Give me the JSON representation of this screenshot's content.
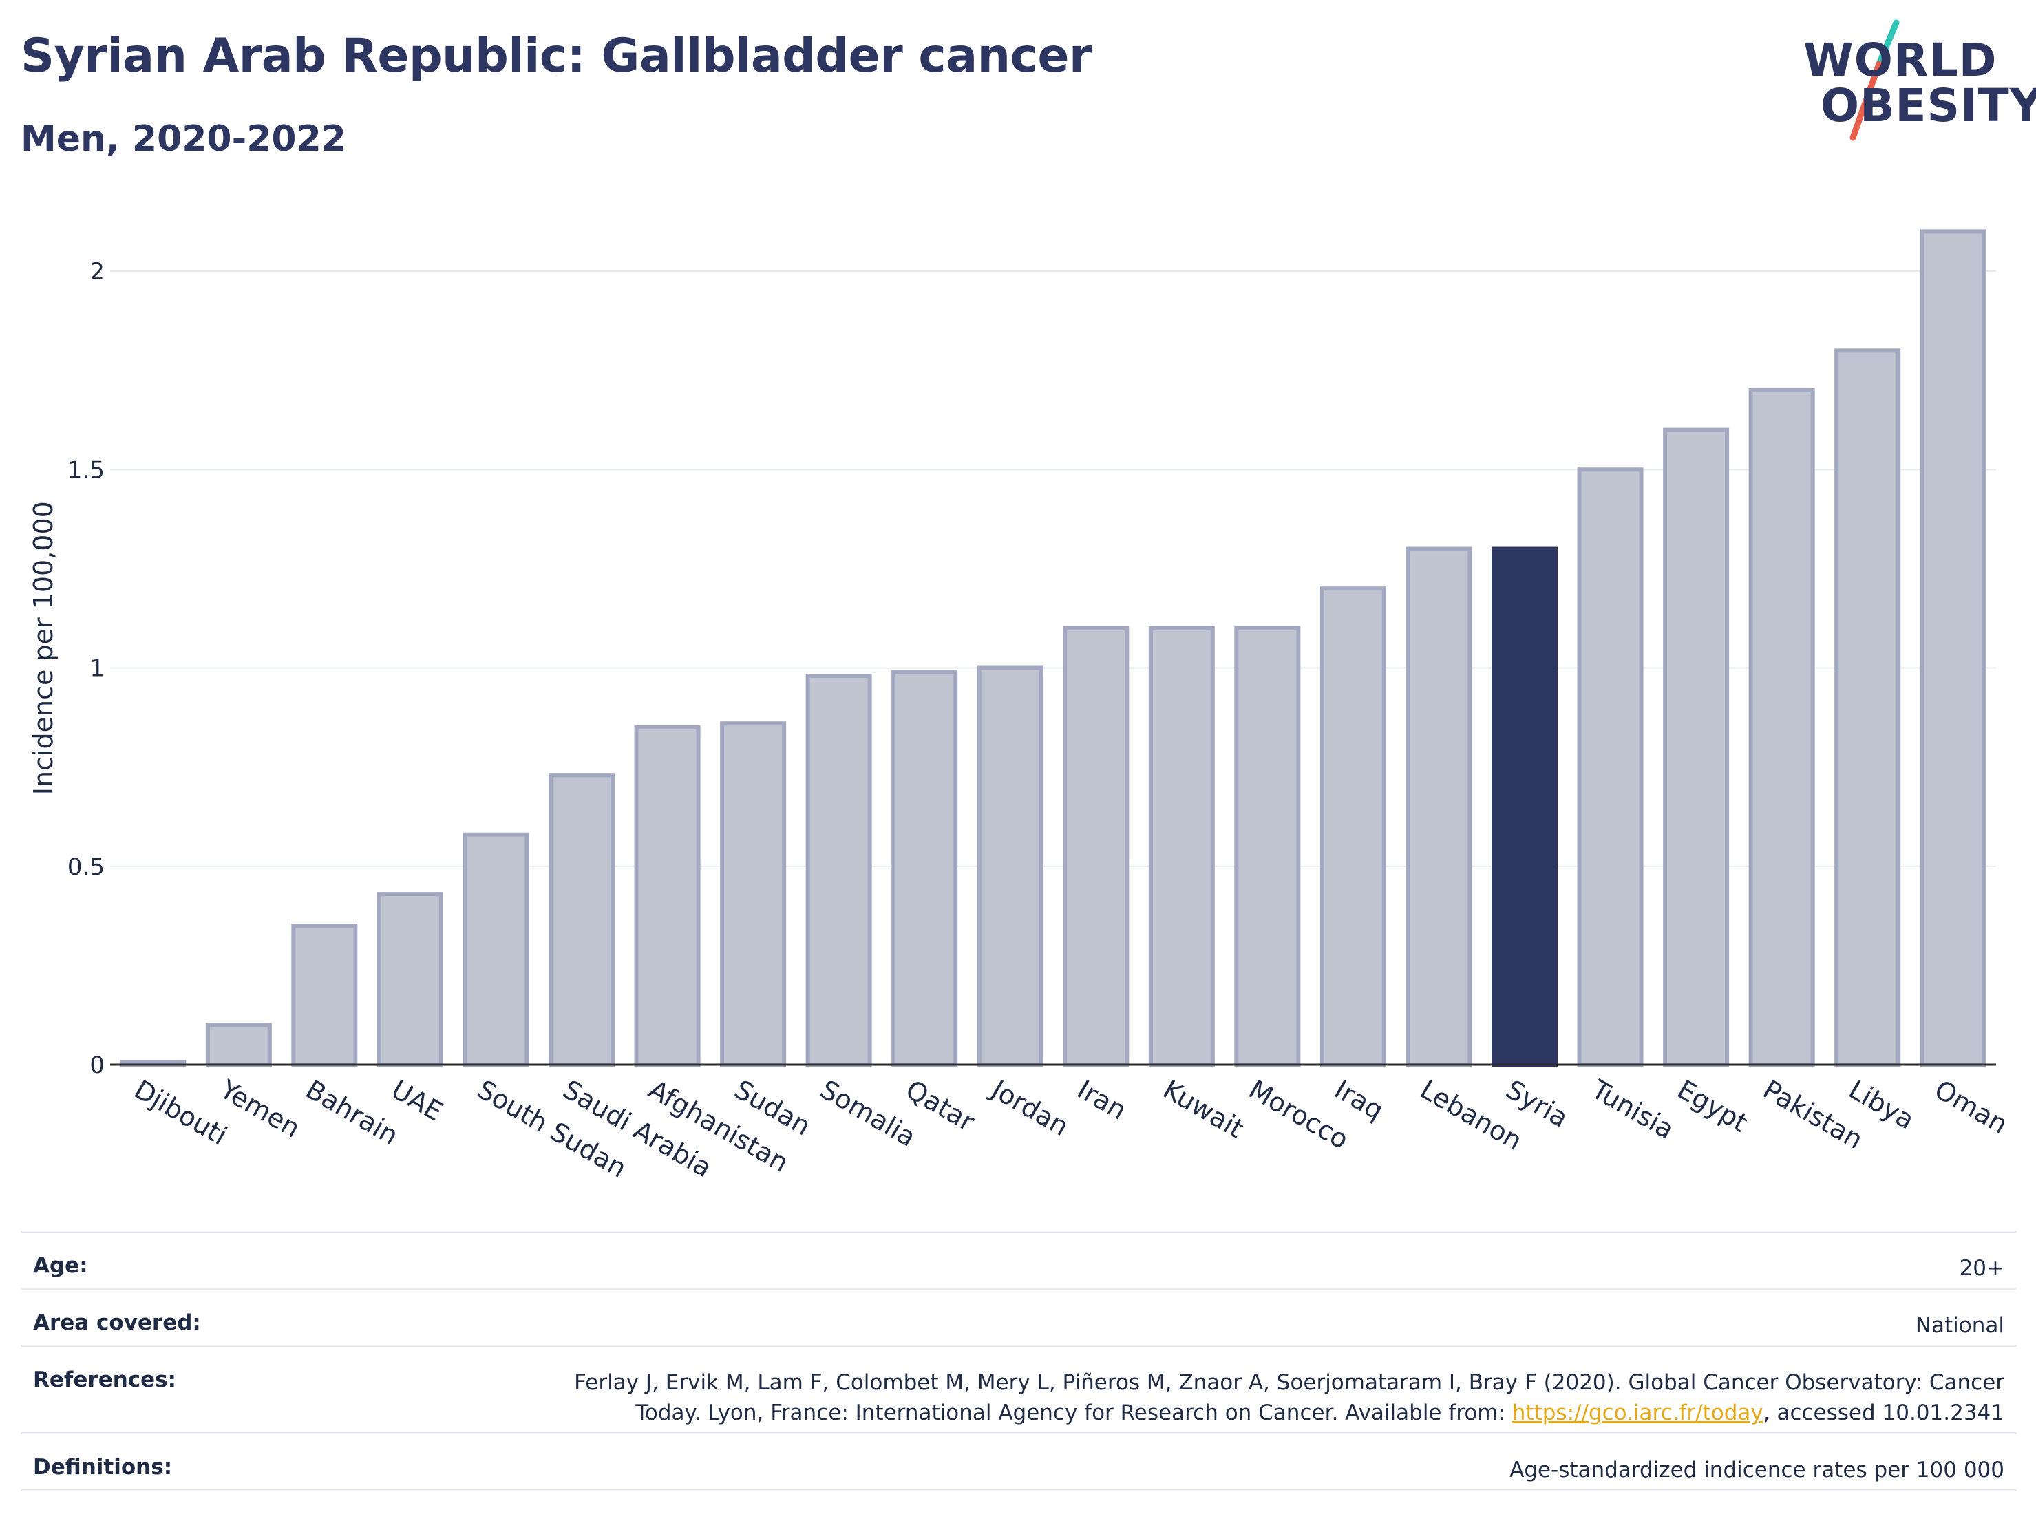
{
  "header": {
    "title": "Syrian Arab Republic: Gallbladder cancer",
    "subtitle": "Men, 2020-2022"
  },
  "logo": {
    "line1": "WORLD",
    "line2": "OBESITY",
    "accent_colors": [
      "#2ec4b6",
      "#e8604c"
    ]
  },
  "colors": {
    "bar_default": "#c0c3d0",
    "bar_border": "#a2a8c0",
    "bar_highlight": "#2d3561",
    "axis_text": "#1f2a44",
    "grid": "#e6e8ee"
  },
  "chart_data": {
    "type": "bar",
    "categories": [
      "Djibouti",
      "Yemen",
      "Bahrain",
      "UAE",
      "South Sudan",
      "Saudi Arabia",
      "Afghanistan",
      "Sudan",
      "Somalia",
      "Qatar",
      "Jordan",
      "Iran",
      "Kuwait",
      "Morocco",
      "Iraq",
      "Lebanon",
      "Syria",
      "Tunisia",
      "Egypt",
      "Pakistan",
      "Libya",
      "Oman"
    ],
    "values": [
      0.0,
      0.1,
      0.35,
      0.43,
      0.58,
      0.73,
      0.85,
      0.86,
      0.98,
      0.99,
      1.0,
      1.1,
      1.1,
      1.1,
      1.2,
      1.3,
      1.3,
      1.5,
      1.6,
      1.7,
      1.8,
      2.1
    ],
    "highlight": "Syria",
    "ylabel": "Incidence per 100,000",
    "ylim": [
      0,
      2.1
    ],
    "yticks": [
      0,
      0.5,
      1,
      1.5,
      2
    ],
    "ytick_labels": [
      "0",
      "0.5",
      "1",
      "1.5",
      "2"
    ],
    "grid": true
  },
  "info": [
    {
      "label": "Age:",
      "value": "20+"
    },
    {
      "label": "Area covered:",
      "value": "National"
    },
    {
      "label": "References:",
      "value_line1": "Ferlay J, Ervik M, Lam F, Colombet M, Mery L, Piñeros M, Znaor A, Soerjomataram I, Bray F (2020). Global Cancer Observatory: Cancer",
      "value_line2_pre": "Today. Lyon, France: International Agency for Research on Cancer. Available from: ",
      "value_link": "https://gco.iarc.fr/today",
      "value_line2_post": ", accessed 10.01.2341"
    },
    {
      "label": "Definitions:",
      "value": "Age-standardized indicence rates per 100 000"
    }
  ]
}
